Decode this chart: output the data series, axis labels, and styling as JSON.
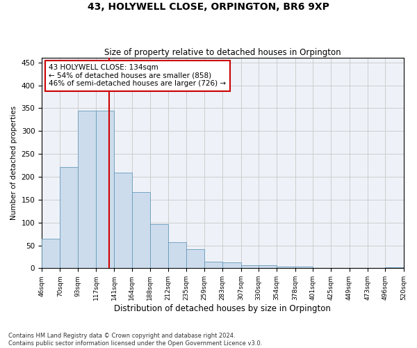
{
  "title": "43, HOLYWELL CLOSE, ORPINGTON, BR6 9XP",
  "subtitle": "Size of property relative to detached houses in Orpington",
  "xlabel": "Distribution of detached houses by size in Orpington",
  "ylabel": "Number of detached properties",
  "bar_color": "#ccdcec",
  "bar_edge_color": "#6699bb",
  "grid_color": "#cccccc",
  "bg_color": "#eef2f8",
  "vline_x": 134,
  "vline_color": "#cc0000",
  "annotation_line1": "43 HOLYWELL CLOSE: 134sqm",
  "annotation_line2": "← 54% of detached houses are smaller (858)",
  "annotation_line3": "46% of semi-detached houses are larger (726) →",
  "annotation_box_color": "#cc0000",
  "bin_edges": [
    46,
    70,
    93,
    117,
    141,
    164,
    188,
    212,
    235,
    259,
    283,
    307,
    330,
    354,
    378,
    401,
    425,
    449,
    473,
    496,
    520
  ],
  "bar_heights": [
    65,
    221,
    345,
    345,
    209,
    167,
    97,
    57,
    42,
    14,
    13,
    7,
    6,
    4,
    4,
    0,
    0,
    0,
    0,
    2
  ],
  "ylim": [
    0,
    460
  ],
  "yticks": [
    0,
    50,
    100,
    150,
    200,
    250,
    300,
    350,
    400,
    450
  ],
  "footer_text": "Contains HM Land Registry data © Crown copyright and database right 2024.\nContains public sector information licensed under the Open Government Licence v3.0.",
  "figsize": [
    6.0,
    5.0
  ],
  "dpi": 100
}
